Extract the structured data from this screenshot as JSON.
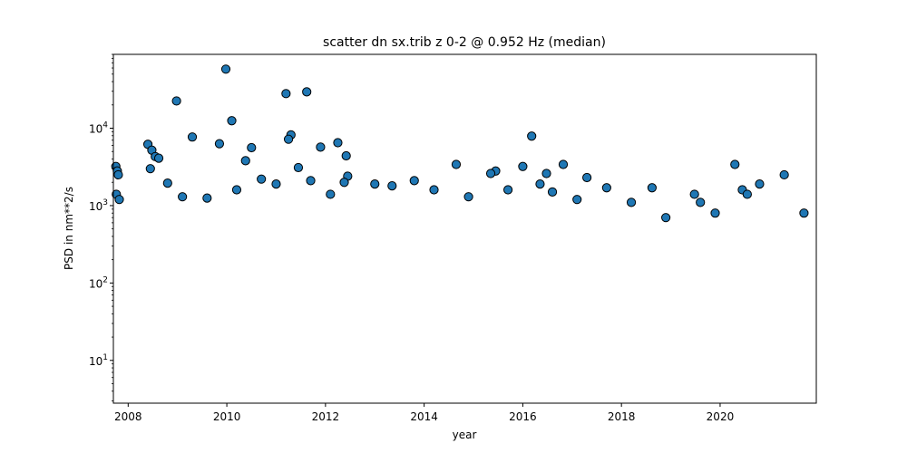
{
  "chart_data": {
    "type": "scatter",
    "title": "scatter dn sx.trib z 0-2 @ 0.952 Hz (median)",
    "xlabel": "year",
    "ylabel": "PSD in nm**2/s",
    "xlim": [
      2007.7,
      2021.95
    ],
    "ylim": [
      2.8,
      90000
    ],
    "yscale": "log",
    "grid": false,
    "marker_color": "#1f77b4",
    "marker_edge_color": "#000000",
    "x_ticks": [
      {
        "value": 2008,
        "label": "2008"
      },
      {
        "value": 2010,
        "label": "2010"
      },
      {
        "value": 2012,
        "label": "2012"
      },
      {
        "value": 2014,
        "label": "2014"
      },
      {
        "value": 2016,
        "label": "2016"
      },
      {
        "value": 2018,
        "label": "2018"
      },
      {
        "value": 2020,
        "label": "2020"
      }
    ],
    "y_ticks": [
      {
        "value": 10,
        "label": "10",
        "exp": "1"
      },
      {
        "value": 100,
        "label": "10",
        "exp": "2"
      },
      {
        "value": 1000,
        "label": "10",
        "exp": "3"
      },
      {
        "value": 10000,
        "label": "10",
        "exp": "4"
      }
    ],
    "series": [
      {
        "values_note": "",
        "points": [
          [
            2007.75,
            3200
          ],
          [
            2007.78,
            2800
          ],
          [
            2007.8,
            2500
          ],
          [
            2007.76,
            1400
          ],
          [
            2007.82,
            1200
          ],
          [
            2008.4,
            6200
          ],
          [
            2008.48,
            5200
          ],
          [
            2008.55,
            4300
          ],
          [
            2008.45,
            3000
          ],
          [
            2008.62,
            4100
          ],
          [
            2008.98,
            22500
          ],
          [
            2009.3,
            7700
          ],
          [
            2009.85,
            6300
          ],
          [
            2009.98,
            58000
          ],
          [
            2010.1,
            12500
          ],
          [
            2010.5,
            5600
          ],
          [
            2010.38,
            3800
          ],
          [
            2011.2,
            28000
          ],
          [
            2011.3,
            8200
          ],
          [
            2011.25,
            7200
          ],
          [
            2011.62,
            29500
          ],
          [
            2011.9,
            5700
          ],
          [
            2011.45,
            3100
          ],
          [
            2012.25,
            6500
          ],
          [
            2012.42,
            4400
          ],
          [
            2012.45,
            2400
          ],
          [
            2012.38,
            2000
          ],
          [
            2014.65,
            3400
          ],
          [
            2015.45,
            2800
          ],
          [
            2015.35,
            2600
          ],
          [
            2016.0,
            3200
          ],
          [
            2016.18,
            7900
          ],
          [
            2016.48,
            2600
          ],
          [
            2016.82,
            3400
          ],
          [
            2017.3,
            2300
          ],
          [
            2018.62,
            1700
          ],
          [
            2019.48,
            1400
          ],
          [
            2019.6,
            1100
          ],
          [
            2020.3,
            3400
          ],
          [
            2020.45,
            1600
          ],
          [
            2020.55,
            1400
          ],
          [
            2021.3,
            2500
          ],
          [
            2008.8,
            1950
          ],
          [
            2009.1,
            1300
          ],
          [
            2009.6,
            1250
          ],
          [
            2010.2,
            1600
          ],
          [
            2010.7,
            2200
          ],
          [
            2011.0,
            1900
          ],
          [
            2011.7,
            2100
          ],
          [
            2012.1,
            1400
          ],
          [
            2013.0,
            1900
          ],
          [
            2013.35,
            1800
          ],
          [
            2013.8,
            2100
          ],
          [
            2014.2,
            1600
          ],
          [
            2014.9,
            1300
          ],
          [
            2015.7,
            1600
          ],
          [
            2016.35,
            1900
          ],
          [
            2016.6,
            1500
          ],
          [
            2017.1,
            1200
          ],
          [
            2017.7,
            1700
          ],
          [
            2018.2,
            1100
          ],
          [
            2018.9,
            700
          ],
          [
            2019.9,
            800
          ],
          [
            2020.8,
            1900
          ],
          [
            2021.7,
            800
          ]
        ]
      }
    ]
  }
}
